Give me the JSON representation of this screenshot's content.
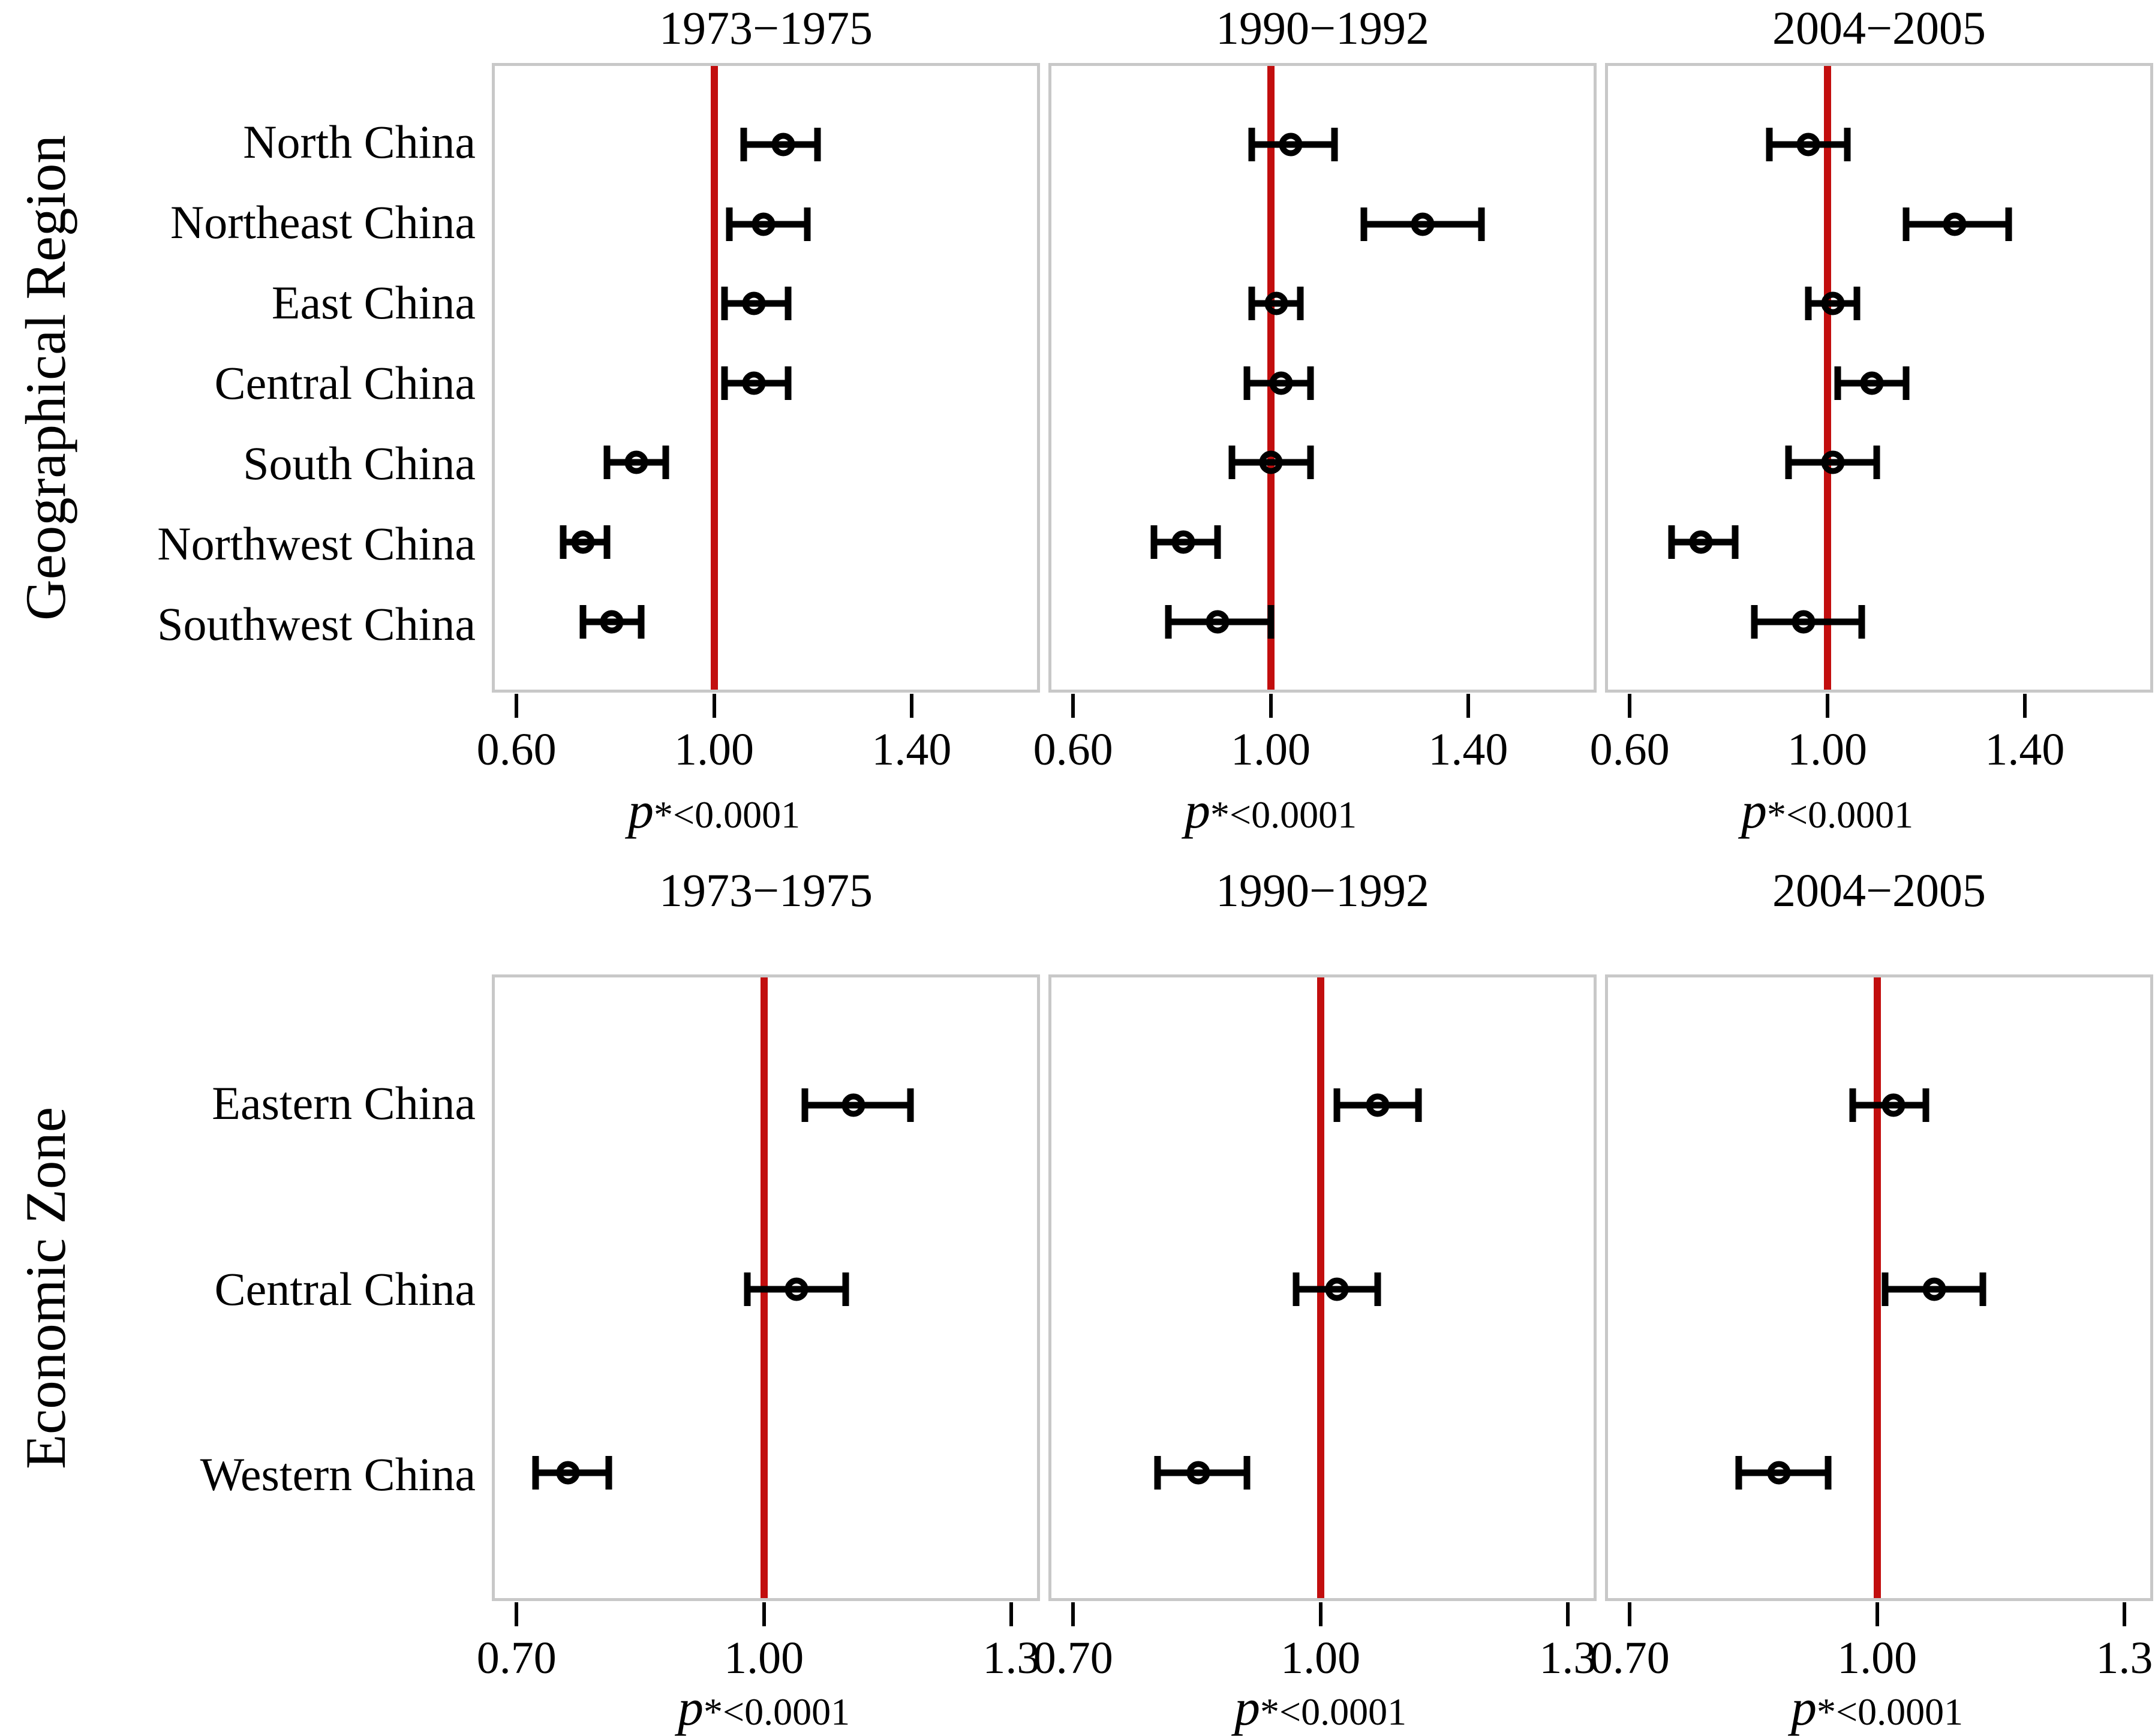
{
  "figure": {
    "background_color": "#ffffff",
    "reference_line_color": "#c20e0e",
    "panel_border_color": "#c8c8c8",
    "marker_color": "#000000"
  },
  "chart_data": [
    {
      "type": "scatter",
      "subtype": "forest-plot",
      "group": "Geographical Region",
      "categories": [
        "North China",
        "Northeast China",
        "East China",
        "Central China",
        "South China",
        "Northwest China",
        "Southwest China"
      ],
      "x_domain": [
        0.55,
        1.66
      ],
      "reference_line": 1.0,
      "grid": false,
      "ticks": [
        {
          "value": 0.6,
          "label": "0.60"
        },
        {
          "value": 1.0,
          "label": "1.00"
        },
        {
          "value": 1.4,
          "label": "1.40"
        }
      ],
      "p_label": {
        "lead": "p",
        "star": "*",
        "rest": "<0.0001"
      },
      "panels": [
        {
          "title": "1973−1975",
          "estimates": [
            1.14,
            1.1,
            1.08,
            1.08,
            0.84,
            0.73,
            0.79
          ],
          "ci_low": [
            1.06,
            1.03,
            1.02,
            1.02,
            0.78,
            0.69,
            0.73
          ],
          "ci_high": [
            1.21,
            1.19,
            1.15,
            1.15,
            0.9,
            0.78,
            0.85
          ]
        },
        {
          "title": "1990−1992",
          "estimates": [
            1.04,
            1.31,
            1.01,
            1.02,
            1.0,
            0.82,
            0.89
          ],
          "ci_low": [
            0.96,
            1.19,
            0.96,
            0.95,
            0.92,
            0.76,
            0.79
          ],
          "ci_high": [
            1.13,
            1.43,
            1.06,
            1.08,
            1.08,
            0.89,
            1.0
          ]
        },
        {
          "title": "2004−2005",
          "estimates": [
            0.96,
            1.26,
            1.01,
            1.09,
            1.01,
            0.74,
            0.95
          ],
          "ci_low": [
            0.88,
            1.16,
            0.96,
            1.02,
            0.92,
            0.68,
            0.85
          ],
          "ci_high": [
            1.04,
            1.37,
            1.06,
            1.16,
            1.1,
            0.81,
            1.07
          ]
        }
      ]
    },
    {
      "type": "scatter",
      "subtype": "forest-plot",
      "group": "Economic Zone",
      "categories": [
        "Eastern China",
        "Central China",
        "Western China"
      ],
      "x_domain": [
        0.67,
        1.335
      ],
      "reference_line": 1.0,
      "grid": false,
      "ticks": [
        {
          "value": 0.7,
          "label": "0.70"
        },
        {
          "value": 1.0,
          "label": "1.00"
        },
        {
          "value": 1.3,
          "label": "1.3"
        }
      ],
      "p_label": {
        "lead": "p",
        "star": "*",
        "rest": "<0.0001"
      },
      "panels": [
        {
          "title": "1973−1975",
          "estimates": [
            1.11,
            1.04,
            0.76
          ],
          "ci_low": [
            1.05,
            0.98,
            0.72
          ],
          "ci_high": [
            1.18,
            1.1,
            0.81
          ]
        },
        {
          "title": "1990−1992",
          "estimates": [
            1.07,
            1.02,
            0.85
          ],
          "ci_low": [
            1.02,
            0.97,
            0.8
          ],
          "ci_high": [
            1.12,
            1.07,
            0.91
          ]
        },
        {
          "title": "2004−2005",
          "estimates": [
            1.02,
            1.07,
            0.88
          ],
          "ci_low": [
            0.97,
            1.01,
            0.83
          ],
          "ci_high": [
            1.06,
            1.13,
            0.94
          ]
        }
      ]
    }
  ]
}
